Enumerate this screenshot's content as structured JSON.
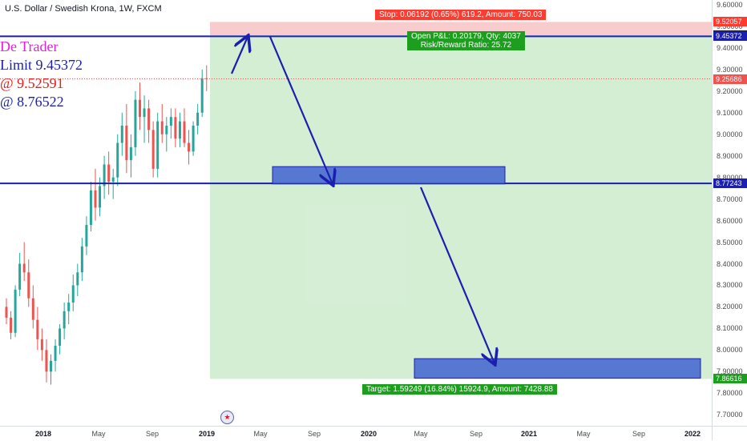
{
  "symbol": {
    "title": "U.S. Dollar / Swedish Krona, 1W, FXCM"
  },
  "author_overlay": {
    "line1": "De Trader",
    "line2": "Limit 9.45372",
    "line3": "@ 9.52591",
    "line4": "@ 8.76522",
    "colors": [
      "#e31fd8",
      "#1b1fb0",
      "#e02020",
      "#1b1fb0"
    ]
  },
  "position_tool": {
    "stop_label": "Stop: 0.06192 (0.65%) 619.2, Amount: 750.03",
    "open_pl_label": "Open P&L: 0.20179, Qty: 4037",
    "risk_reward_label": "Risk/Reward Ratio: 25.72",
    "target_label": "Target: 1.59249 (16.84%) 15924.9, Amount: 7428.88",
    "entry_price": 9.45865,
    "stop_price": 9.52057,
    "target_price": 7.86616,
    "colors": {
      "stop": "#ff3b30",
      "profit": "#1e9e1e",
      "stop_zone": "#f7c6c6",
      "profit_zone": "#cdebcd"
    }
  },
  "price_axis": {
    "ticks": [
      "9.60000",
      "9.50000",
      "9.40000",
      "9.30000",
      "9.20000",
      "9.10000",
      "9.00000",
      "8.90000",
      "8.80000",
      "8.70000",
      "8.60000",
      "8.50000",
      "8.40000",
      "8.30000",
      "8.20000",
      "8.10000",
      "8.00000",
      "7.90000",
      "7.80000",
      "7.70000"
    ],
    "ticks_values": [
      9.6,
      9.5,
      9.4,
      9.3,
      9.2,
      9.1,
      9.0,
      8.9,
      8.8,
      8.7,
      8.6,
      8.5,
      8.4,
      8.3,
      8.2,
      8.1,
      8.0,
      7.9,
      7.8,
      7.7
    ],
    "tags": [
      {
        "label": "9.52057",
        "value": 9.52057,
        "color": "#ff3b30"
      },
      {
        "label": "9.45865",
        "value": 9.45865,
        "color": "#131722"
      },
      {
        "label": "9.45372",
        "value": 9.45372,
        "color": "#1b1fb0"
      },
      {
        "label": "9.25686",
        "value": 9.25686,
        "color": "#ef5350"
      },
      {
        "label": "8.77243",
        "value": 8.77243,
        "color": "#1b1fb0"
      },
      {
        "label": "7.86616",
        "value": 7.86616,
        "color": "#1e9e1e"
      }
    ]
  },
  "time_axis": {
    "labels": [
      {
        "text": "2018",
        "bold": true
      },
      {
        "text": "May",
        "bold": false
      },
      {
        "text": "Sep",
        "bold": false
      },
      {
        "text": "2019",
        "bold": true
      },
      {
        "text": "May",
        "bold": false
      },
      {
        "text": "Sep",
        "bold": false
      },
      {
        "text": "2020",
        "bold": true
      },
      {
        "text": "May",
        "bold": false
      },
      {
        "text": "Sep",
        "bold": false
      },
      {
        "text": "2021",
        "bold": true
      },
      {
        "text": "May",
        "bold": false
      },
      {
        "text": "Sep",
        "bold": false
      },
      {
        "text": "2022",
        "bold": true
      }
    ]
  },
  "levels": {
    "resistance": 9.45372,
    "support": 8.77243,
    "last_price": 9.25686,
    "line_color": "#1b1fb0"
  },
  "chart_data": {
    "type": "candlestick",
    "title": "U.S. Dollar / Swedish Krona, 1W, FXCM",
    "y_range": [
      7.65,
      9.65
    ],
    "up_color": "#26a69a",
    "down_color": "#ef5350",
    "ohlc": [
      [
        8.2,
        8.24,
        8.12,
        8.15
      ],
      [
        8.15,
        8.18,
        8.05,
        8.08
      ],
      [
        8.08,
        8.3,
        8.06,
        8.28
      ],
      [
        8.28,
        8.45,
        8.25,
        8.4
      ],
      [
        8.4,
        8.5,
        8.32,
        8.36
      ],
      [
        8.36,
        8.42,
        8.2,
        8.24
      ],
      [
        8.24,
        8.3,
        8.1,
        8.14
      ],
      [
        8.14,
        8.2,
        8.0,
        8.05
      ],
      [
        8.05,
        8.1,
        7.95,
        8.0
      ],
      [
        8.0,
        8.05,
        7.85,
        7.9
      ],
      [
        7.9,
        7.98,
        7.84,
        7.95
      ],
      [
        7.95,
        8.05,
        7.9,
        8.02
      ],
      [
        8.02,
        8.12,
        7.98,
        8.1
      ],
      [
        8.1,
        8.22,
        8.05,
        8.18
      ],
      [
        8.18,
        8.26,
        8.12,
        8.22
      ],
      [
        8.22,
        8.35,
        8.18,
        8.3
      ],
      [
        8.3,
        8.4,
        8.25,
        8.36
      ],
      [
        8.36,
        8.52,
        8.32,
        8.48
      ],
      [
        8.48,
        8.62,
        8.44,
        8.58
      ],
      [
        8.58,
        8.78,
        8.55,
        8.74
      ],
      [
        8.74,
        8.84,
        8.6,
        8.66
      ],
      [
        8.66,
        8.8,
        8.62,
        8.76
      ],
      [
        8.76,
        8.9,
        8.7,
        8.86
      ],
      [
        8.86,
        8.92,
        8.72,
        8.78
      ],
      [
        8.78,
        8.84,
        8.7,
        8.8
      ],
      [
        8.8,
        9.0,
        8.76,
        8.96
      ],
      [
        8.96,
        9.1,
        8.9,
        9.04
      ],
      [
        9.04,
        9.14,
        8.82,
        8.88
      ],
      [
        8.88,
        9.0,
        8.8,
        8.94
      ],
      [
        8.94,
        9.2,
        8.9,
        9.16
      ],
      [
        9.16,
        9.24,
        9.02,
        9.08
      ],
      [
        9.08,
        9.18,
        8.96,
        9.12
      ],
      [
        9.12,
        9.16,
        8.96,
        9.02
      ],
      [
        9.02,
        9.06,
        8.8,
        8.84
      ],
      [
        8.84,
        9.1,
        8.8,
        9.06
      ],
      [
        9.06,
        9.14,
        8.96,
        9.0
      ],
      [
        9.0,
        9.08,
        8.92,
        9.04
      ],
      [
        9.04,
        9.12,
        8.98,
        9.08
      ],
      [
        9.08,
        9.12,
        8.94,
        8.98
      ],
      [
        8.98,
        9.1,
        8.94,
        9.06
      ],
      [
        9.06,
        9.12,
        8.94,
        8.96
      ],
      [
        8.96,
        9.02,
        8.86,
        8.92
      ],
      [
        8.92,
        9.06,
        8.9,
        9.04
      ],
      [
        9.04,
        9.14,
        9.0,
        9.1
      ],
      [
        9.1,
        9.3,
        9.08,
        9.26
      ],
      [
        9.26,
        9.32,
        9.2,
        9.257
      ]
    ]
  }
}
